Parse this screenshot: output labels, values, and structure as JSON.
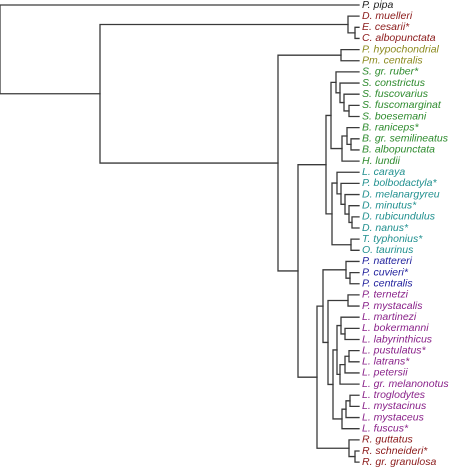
{
  "tree": {
    "colors": {
      "black": "#1e1e1e",
      "darkred": "#8b1a1a",
      "olive": "#8c8a1f",
      "green": "#2e8b2e",
      "teal": "#21908f",
      "navy": "#1f1f9c",
      "purple": "#8a238a"
    },
    "leaves": [
      {
        "label": "P. pipa",
        "color": "black"
      },
      {
        "label": "D. muelleri",
        "color": "darkred"
      },
      {
        "label": "E. cesarii*",
        "color": "darkred"
      },
      {
        "label": "C. albopunctata",
        "color": "darkred"
      },
      {
        "label": "P. hypochondrial",
        "color": "olive"
      },
      {
        "label": "Pm. centralis",
        "color": "olive"
      },
      {
        "label": "S. gr. ruber*",
        "color": "green"
      },
      {
        "label": "S. constrictus",
        "color": "green"
      },
      {
        "label": "S. fuscovarius",
        "color": "green"
      },
      {
        "label": "S. fuscomarginat",
        "color": "green"
      },
      {
        "label": "S. boesemani",
        "color": "green"
      },
      {
        "label": "B. raniceps*",
        "color": "green"
      },
      {
        "label": "B. gr. semilineatus",
        "color": "green"
      },
      {
        "label": "B. albopunctata",
        "color": "green"
      },
      {
        "label": "H. lundii",
        "color": "green"
      },
      {
        "label": "L. caraya",
        "color": "teal"
      },
      {
        "label": "P. bolbodactyla*",
        "color": "teal"
      },
      {
        "label": "D. melanargyreu",
        "color": "teal"
      },
      {
        "label": "D. minutus*",
        "color": "teal"
      },
      {
        "label": "D. rubicundulus",
        "color": "teal"
      },
      {
        "label": "D. nanus*",
        "color": "teal"
      },
      {
        "label": "T. typhonius*",
        "color": "teal"
      },
      {
        "label": "O. taurinus",
        "color": "teal"
      },
      {
        "label": "P. nattereri",
        "color": "navy"
      },
      {
        "label": "P. cuvieri*",
        "color": "navy"
      },
      {
        "label": "P. centralis",
        "color": "navy"
      },
      {
        "label": "P. ternetzi",
        "color": "purple"
      },
      {
        "label": "P. mystacalis",
        "color": "purple"
      },
      {
        "label": "L. martinezi",
        "color": "purple"
      },
      {
        "label": "L. bokermanni",
        "color": "purple"
      },
      {
        "label": "L. labyrinthicus",
        "color": "purple"
      },
      {
        "label": "L. pustulatus*",
        "color": "purple"
      },
      {
        "label": "L. latrans*",
        "color": "purple"
      },
      {
        "label": "L. petersii",
        "color": "purple"
      },
      {
        "label": "L. gr. melanonotus",
        "color": "purple"
      },
      {
        "label": "L. troglodytes",
        "color": "purple"
      },
      {
        "label": "L. mystacinus",
        "color": "purple"
      },
      {
        "label": "L. mystaceus",
        "color": "purple"
      },
      {
        "label": "L. fuscus*",
        "color": "purple"
      },
      {
        "label": "R. guttatus",
        "color": "darkred"
      },
      {
        "label": "R. schneideri*",
        "color": "darkred"
      },
      {
        "label": "R. gr. granulosa",
        "color": "darkred"
      }
    ]
  }
}
